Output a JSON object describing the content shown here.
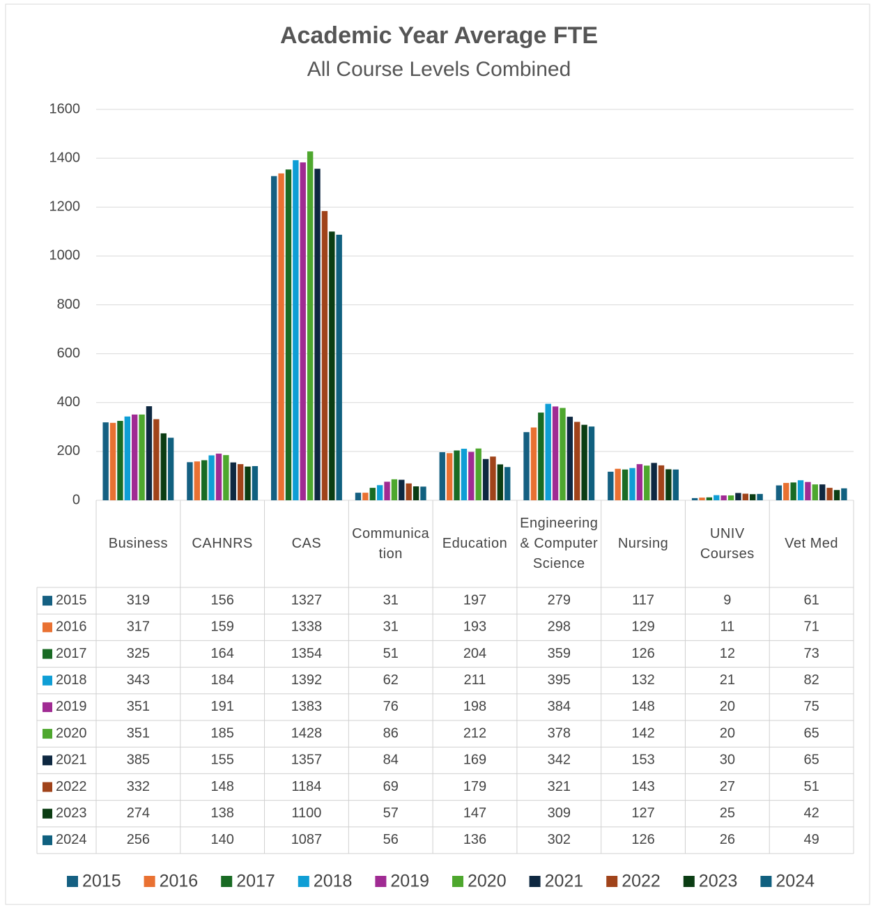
{
  "chart_data": {
    "type": "bar",
    "title": "Academic Year Average FTE",
    "subtitle": "All Course Levels Combined",
    "categories": [
      "Business",
      "CAHNRS",
      "CAS",
      "Communication",
      "Education",
      "Engineering & Computer Science",
      "Nursing",
      "UNIV Courses",
      "Vet Med"
    ],
    "series": [
      {
        "name": "2015",
        "color": "#156082",
        "values": [
          319,
          156,
          1327,
          31,
          197,
          279,
          117,
          9,
          61
        ]
      },
      {
        "name": "2016",
        "color": "#e97132",
        "values": [
          317,
          159,
          1338,
          31,
          193,
          298,
          129,
          11,
          71
        ]
      },
      {
        "name": "2017",
        "color": "#196b24",
        "values": [
          325,
          164,
          1354,
          51,
          204,
          359,
          126,
          12,
          73
        ]
      },
      {
        "name": "2018",
        "color": "#0f9ed5",
        "values": [
          343,
          184,
          1392,
          62,
          211,
          395,
          132,
          21,
          82
        ]
      },
      {
        "name": "2019",
        "color": "#a02b93",
        "values": [
          351,
          191,
          1383,
          76,
          198,
          384,
          148,
          20,
          75
        ]
      },
      {
        "name": "2020",
        "color": "#4ea72e",
        "values": [
          351,
          185,
          1428,
          86,
          212,
          378,
          142,
          20,
          65
        ]
      },
      {
        "name": "2021",
        "color": "#0e2841",
        "values": [
          385,
          155,
          1357,
          84,
          169,
          342,
          153,
          30,
          65
        ]
      },
      {
        "name": "2022",
        "color": "#a0431a",
        "values": [
          332,
          148,
          1184,
          69,
          179,
          321,
          143,
          27,
          51
        ]
      },
      {
        "name": "2023",
        "color": "#0b3d13",
        "values": [
          274,
          138,
          1100,
          57,
          147,
          309,
          127,
          25,
          42
        ]
      },
      {
        "name": "2024",
        "color": "#10607f",
        "values": [
          256,
          140,
          1087,
          56,
          136,
          302,
          126,
          26,
          49
        ]
      }
    ],
    "ylim": [
      0,
      1600
    ],
    "yticks": [
      0,
      200,
      400,
      600,
      800,
      1000,
      1200,
      1400,
      1600
    ],
    "grid": true
  }
}
